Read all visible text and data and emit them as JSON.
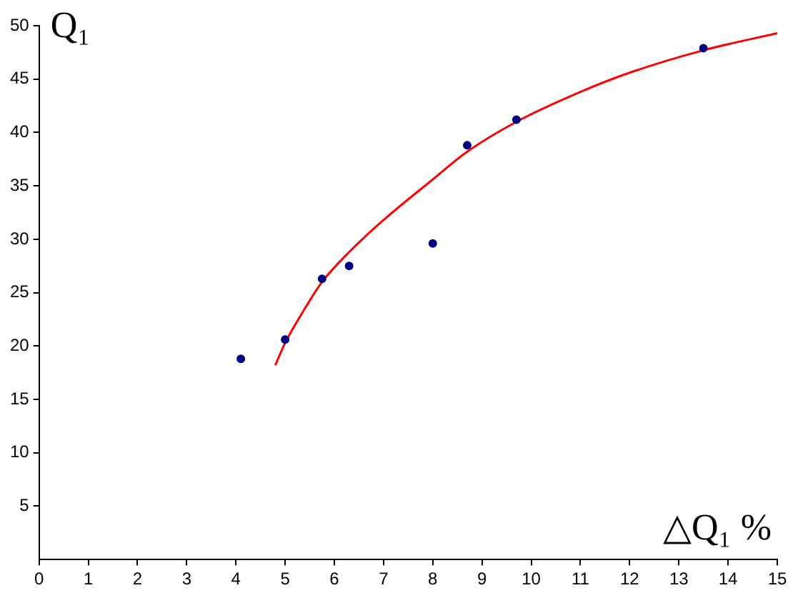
{
  "chart_data": {
    "type": "scatter",
    "xlabel": "△Q₁ %",
    "ylabel": "Q₁",
    "xlim": [
      0,
      15
    ],
    "ylim": [
      0,
      50
    ],
    "xticks": [
      0,
      1,
      2,
      3,
      4,
      5,
      6,
      7,
      8,
      9,
      10,
      11,
      12,
      13,
      14,
      15
    ],
    "yticks": [
      5,
      10,
      15,
      20,
      25,
      30,
      35,
      40,
      45,
      50
    ],
    "grid": false,
    "legend": false,
    "series": [
      {
        "type": "scatter",
        "color": "#000080",
        "marker": "circle",
        "x": [
          4.1,
          5.0,
          5.75,
          6.3,
          8.0,
          8.7,
          9.7,
          13.5
        ],
        "values": [
          18.8,
          20.6,
          26.3,
          27.5,
          29.6,
          38.8,
          41.2,
          47.9
        ]
      },
      {
        "type": "line",
        "color": "#ff0000",
        "marker": "none",
        "line_style": "solid",
        "x": [
          4.8,
          5.0,
          5.4,
          5.75,
          6.3,
          7.0,
          8.0,
          8.7,
          9.7,
          11.0,
          12.0,
          13.5,
          15.0
        ],
        "values": [
          18.2,
          20.3,
          23.5,
          26.0,
          28.8,
          31.8,
          35.6,
          38.2,
          41.0,
          43.8,
          45.6,
          47.7,
          49.3
        ]
      }
    ]
  }
}
